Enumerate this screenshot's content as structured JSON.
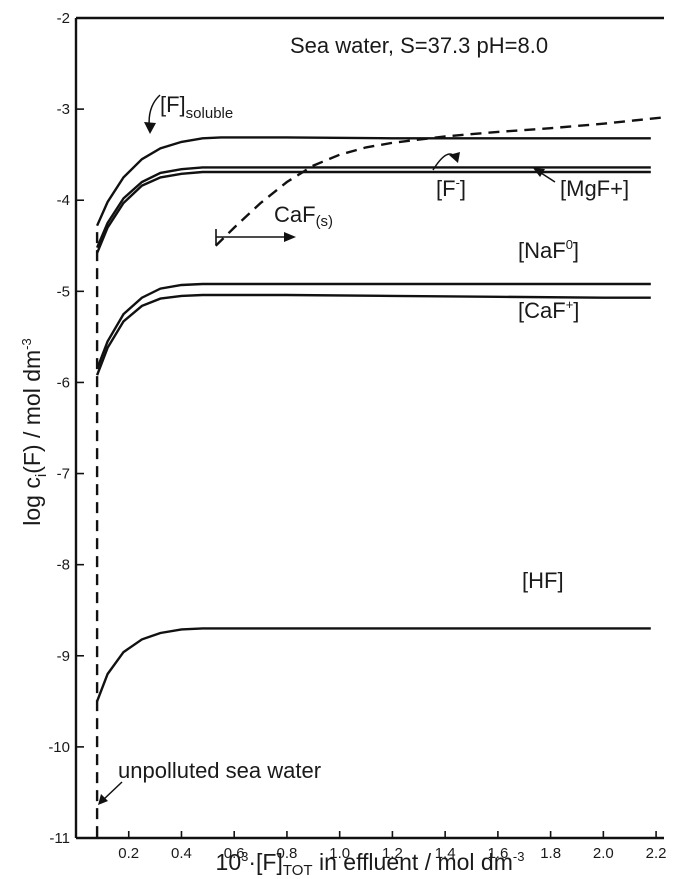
{
  "chart_data": {
    "type": "line",
    "title": "Sea water, S=37.3  pH=8.0",
    "xlabel": {
      "prefix": "10",
      "prefix_sup": "3",
      "mid": "·[F]",
      "sub": "TOT",
      "suffix": " in effluent / mol dm",
      "sup": "-3"
    },
    "ylabel": {
      "prefix": "log c",
      "sub": "i",
      "suffix": "(F) / mol dm",
      "sup": "-3"
    },
    "xlim": [
      0.0,
      2.23
    ],
    "ylim": [
      -11,
      -2
    ],
    "xticks": [
      "0.2",
      "0.4",
      "0.6",
      "0.8",
      "1.0",
      "1.2",
      "1.4",
      "1.6",
      "1.8",
      "2.0",
      "2.2"
    ],
    "yticks": [
      "-2",
      "-3",
      "-4",
      "-5",
      "-6",
      "-7",
      "-8",
      "-9",
      "-10",
      "-11"
    ],
    "series": [
      {
        "name": "[F]soluble",
        "style": "solid",
        "x": [
          0.08,
          0.12,
          0.18,
          0.25,
          0.32,
          0.4,
          0.48,
          0.55,
          0.8,
          1.2,
          1.6,
          2.0,
          2.18
        ],
        "y": [
          -4.28,
          -4.02,
          -3.75,
          -3.55,
          -3.43,
          -3.36,
          -3.32,
          -3.31,
          -3.31,
          -3.32,
          -3.32,
          -3.32,
          -3.32
        ]
      },
      {
        "name": "[MgF+]",
        "style": "solid",
        "x": [
          0.08,
          0.12,
          0.18,
          0.25,
          0.32,
          0.4,
          0.48,
          0.55,
          0.8,
          1.2,
          1.6,
          2.0,
          2.18
        ],
        "y": [
          -4.52,
          -4.25,
          -3.98,
          -3.8,
          -3.7,
          -3.66,
          -3.64,
          -3.64,
          -3.64,
          -3.64,
          -3.64,
          -3.64,
          -3.64
        ]
      },
      {
        "name": "[F-]",
        "style": "solid",
        "x": [
          0.08,
          0.12,
          0.18,
          0.25,
          0.32,
          0.4,
          0.48,
          0.55,
          0.8,
          1.2,
          1.6,
          2.0,
          2.18
        ],
        "y": [
          -4.58,
          -4.3,
          -4.03,
          -3.84,
          -3.75,
          -3.71,
          -3.69,
          -3.69,
          -3.69,
          -3.69,
          -3.69,
          -3.69,
          -3.69
        ]
      },
      {
        "name": "[NaF0]",
        "style": "solid",
        "x": [
          0.08,
          0.12,
          0.18,
          0.25,
          0.32,
          0.4,
          0.48,
          0.55,
          0.8,
          1.2,
          1.6,
          2.0,
          2.18
        ],
        "y": [
          -5.85,
          -5.55,
          -5.25,
          -5.07,
          -4.97,
          -4.93,
          -4.92,
          -4.92,
          -4.92,
          -4.92,
          -4.92,
          -4.92,
          -4.92
        ]
      },
      {
        "name": "[CaF+]",
        "style": "solid",
        "x": [
          0.08,
          0.12,
          0.18,
          0.25,
          0.32,
          0.4,
          0.48,
          0.55,
          0.8,
          1.2,
          1.6,
          2.0,
          2.18
        ],
        "y": [
          -5.92,
          -5.62,
          -5.33,
          -5.16,
          -5.08,
          -5.05,
          -5.04,
          -5.04,
          -5.04,
          -5.05,
          -5.06,
          -5.07,
          -5.07
        ]
      },
      {
        "name": "[HF]",
        "style": "solid",
        "x": [
          0.08,
          0.12,
          0.18,
          0.25,
          0.32,
          0.4,
          0.48,
          0.55,
          0.8,
          1.2,
          1.6,
          2.0,
          2.18
        ],
        "y": [
          -9.5,
          -9.2,
          -8.96,
          -8.82,
          -8.75,
          -8.71,
          -8.7,
          -8.7,
          -8.7,
          -8.7,
          -8.7,
          -8.7,
          -8.7
        ]
      },
      {
        "name": "CaF(s)",
        "style": "dashed",
        "x": [
          0.53,
          0.6,
          0.7,
          0.8,
          0.9,
          1.0,
          1.1,
          1.2,
          1.4,
          1.6,
          1.8,
          2.0,
          2.23
        ],
        "y": [
          -4.5,
          -4.3,
          -4.03,
          -3.8,
          -3.62,
          -3.5,
          -3.42,
          -3.37,
          -3.3,
          -3.25,
          -3.21,
          -3.16,
          -3.09
        ]
      },
      {
        "name": "unpolluted sea water",
        "style": "dashed",
        "x": [
          0.08,
          0.08
        ],
        "y": [
          -4.35,
          -11
        ]
      }
    ],
    "labels": {
      "soluble_main": "[F]",
      "soluble_sub": "soluble",
      "f_minus_main": "[F",
      "f_minus_sup": "-",
      "f_minus_close": "]",
      "mgf": "[MgF+]",
      "naf_main": "[NaF",
      "naf_sup": "0",
      "naf_close": "]",
      "caf_main": "[CaF",
      "caf_sup": "+",
      "caf_close": "]",
      "cafs_main": "CaF",
      "cafs_sub": "(s)",
      "hf": "[HF]",
      "unpolluted": "unpolluted sea water"
    },
    "grid": false,
    "legend": "none"
  }
}
